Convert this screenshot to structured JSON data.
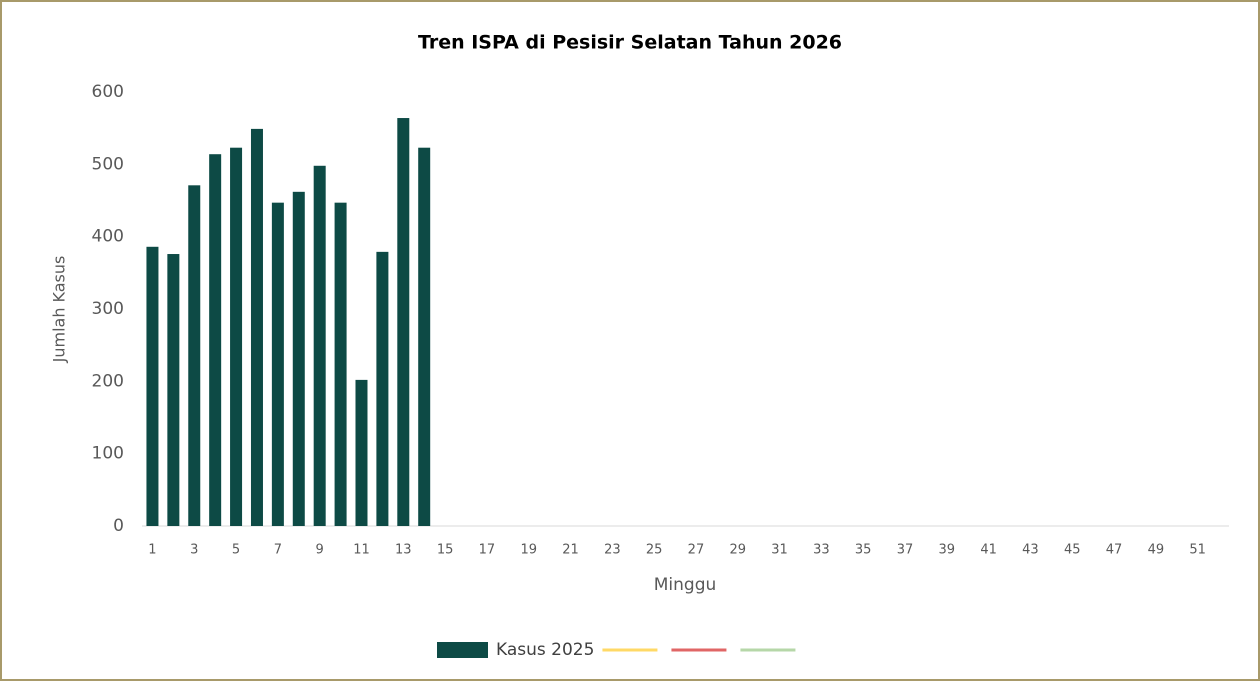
{
  "chart_data": {
    "type": "bar",
    "title": "Tren ISPA di Pesisir Selatan Tahun 2026",
    "x_label": "Minggu",
    "y_label": "Jumlah Kasus",
    "categories": [
      "1",
      null,
      "3",
      null,
      "5",
      null,
      "7",
      null,
      "9",
      null,
      "11",
      null,
      "13",
      null,
      "15",
      null,
      "17",
      null,
      "19",
      null,
      "21",
      null,
      "23",
      null,
      "25",
      null,
      "27",
      null,
      "29",
      null,
      "31",
      null,
      "33",
      null,
      "35",
      null,
      "37",
      null,
      "39",
      null,
      "41",
      null,
      "43",
      null,
      "45",
      null,
      "47",
      null,
      "49",
      null,
      "51",
      null
    ],
    "series": [
      {
        "name": "Kasus 2025",
        "color": "#0d4a45",
        "values": [
          386,
          376,
          471,
          514,
          523,
          549,
          447,
          462,
          498,
          447,
          202,
          379,
          564,
          523,
          null,
          null,
          null,
          null,
          null,
          null,
          null,
          null,
          null,
          null,
          null,
          null,
          null,
          null,
          null,
          null,
          null,
          null,
          null,
          null,
          null,
          null,
          null,
          null,
          null,
          null,
          null,
          null,
          null,
          null,
          null,
          null,
          null,
          null,
          null,
          null,
          null,
          null
        ]
      }
    ],
    "legend_lines": [
      "#ffd966",
      "#e06666",
      "#b6d7a8"
    ],
    "ylim": [
      0,
      600
    ],
    "yticks": [
      0,
      100,
      200,
      300,
      400,
      500,
      600
    ],
    "grid": false,
    "legend": "bottom"
  }
}
